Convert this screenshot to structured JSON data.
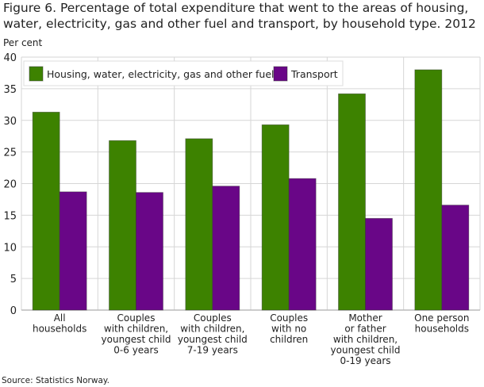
{
  "chart_data": {
    "type": "bar",
    "title": "Figure 6. Percentage of total expenditure that went to the areas of housing, water, electricity, gas and other fuel and transport, by household type. 2012",
    "ylabel": "Per cent",
    "xlabel": "",
    "ylim": [
      0,
      40
    ],
    "yticks": [
      0,
      5,
      10,
      15,
      20,
      25,
      30,
      35,
      40
    ],
    "grid": true,
    "legend_position": "top-left",
    "categories": [
      [
        "All",
        "households"
      ],
      [
        "Couples",
        "with children,",
        "youngest child",
        "0-6 years"
      ],
      [
        "Couples",
        "with children,",
        "youngest child",
        "7-19 years"
      ],
      [
        "Couples",
        "with no",
        "children"
      ],
      [
        "Mother",
        "or father",
        "with children,",
        "youngest child",
        "0-19 years"
      ],
      [
        "One person",
        "households"
      ]
    ],
    "series": [
      {
        "name": "Housing, water, electricity, gas and other fuel",
        "color": "#3d8200",
        "values": [
          31.3,
          26.8,
          27.1,
          29.3,
          34.2,
          38.0
        ]
      },
      {
        "name": "Transport",
        "color": "#690687",
        "values": [
          18.7,
          18.6,
          19.6,
          20.8,
          14.5,
          16.6
        ]
      }
    ],
    "source": "Source: Statistics Norway."
  }
}
